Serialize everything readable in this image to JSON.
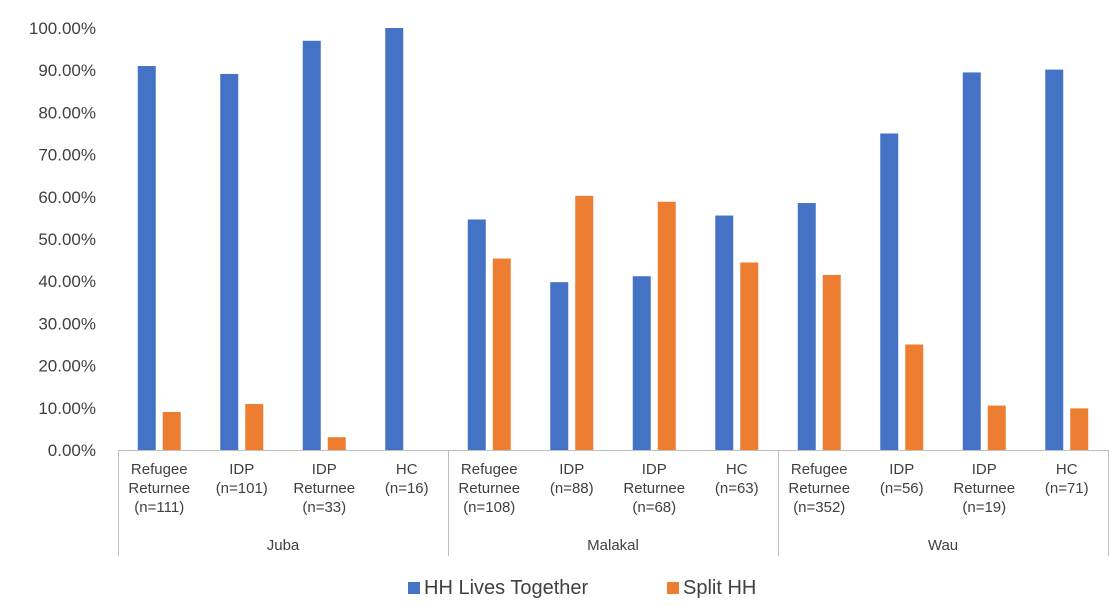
{
  "chart_data": {
    "type": "bar",
    "groups": [
      "Juba",
      "Malakal",
      "Wau"
    ],
    "categories": [
      [
        "Refugee",
        "Returnee",
        "(n=111)"
      ],
      [
        "IDP",
        "(n=101)"
      ],
      [
        "IDP",
        "Returnee",
        "(n=33)"
      ],
      [
        "HC",
        "(n=16)"
      ],
      [
        "Refugee",
        "Returnee",
        "(n=108)"
      ],
      [
        "IDP",
        "(n=88)"
      ],
      [
        "IDP",
        "Returnee",
        "(n=68)"
      ],
      [
        "HC",
        "(n=63)"
      ],
      [
        "Refugee",
        "Returnee",
        "(n=352)"
      ],
      [
        "IDP",
        "(n=56)"
      ],
      [
        "IDP",
        "Returnee",
        "(n=19)"
      ],
      [
        "HC",
        "(n=71)"
      ]
    ],
    "series": [
      {
        "name": "HH Lives Together",
        "color": "#4472C4",
        "values": [
          90.99,
          89.11,
          96.97,
          100.0,
          54.63,
          39.77,
          41.18,
          55.56,
          58.52,
          75.0,
          89.47,
          90.14
        ]
      },
      {
        "name": "Split HH",
        "color": "#ED7D31",
        "values": [
          9.01,
          10.89,
          3.03,
          0.0,
          45.37,
          60.23,
          58.82,
          44.44,
          41.48,
          25.0,
          10.53,
          9.86
        ]
      }
    ],
    "yticks": [
      "0.00%",
      "10.00%",
      "20.00%",
      "30.00%",
      "40.00%",
      "50.00%",
      "60.00%",
      "70.00%",
      "80.00%",
      "90.00%",
      "100.00%"
    ],
    "ylim": [
      0,
      100
    ],
    "grid": false,
    "legend_position": "bottom",
    "title": "",
    "xlabel": "",
    "ylabel": ""
  }
}
